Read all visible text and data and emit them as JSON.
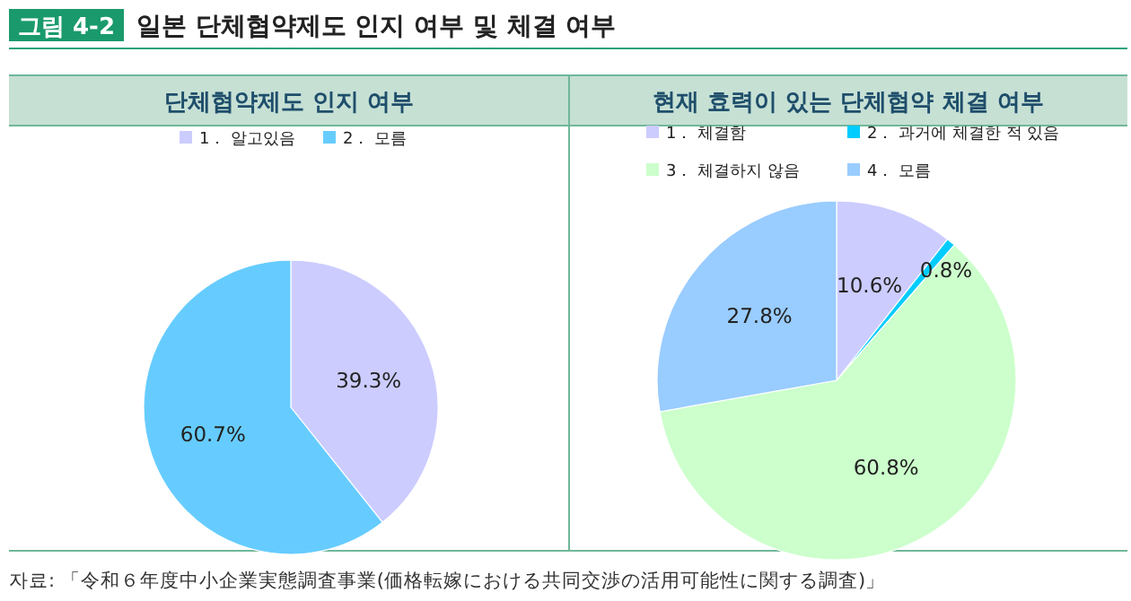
{
  "chart_data": [
    {
      "type": "pie",
      "title": "단체협약제도 인지 여부",
      "categories": [
        "1． 알고있음",
        "2． 모름"
      ],
      "values": [
        39.3,
        60.7
      ],
      "colors": [
        "#ccccff",
        "#66ccff"
      ],
      "value_labels": [
        "39.3%",
        "60.7%"
      ],
      "legend": "top",
      "annotations": [
        "그림 4-2",
        "일본 단체협약제도 인지 여부 및 체결 여부",
        "자료: 「令和６年度中小企業実態調査事業(価格転嫁における共同交渉の活用可能性に関する調査)」"
      ]
    },
    {
      "type": "pie",
      "title": "현재 효력이 있는 단체협약 체결 여부",
      "categories": [
        "1． 체결함",
        "2． 과거에 체결한 적 있음",
        "3． 체결하지 않음",
        "4． 모름"
      ],
      "values": [
        10.6,
        0.8,
        60.8,
        27.8
      ],
      "colors": [
        "#ccccff",
        "#00ccff",
        "#ccffcc",
        "#99ccff"
      ],
      "value_labels": [
        "10.6%",
        "0.8%",
        "60.8%",
        "27.8%"
      ],
      "legend": "top"
    }
  ]
}
